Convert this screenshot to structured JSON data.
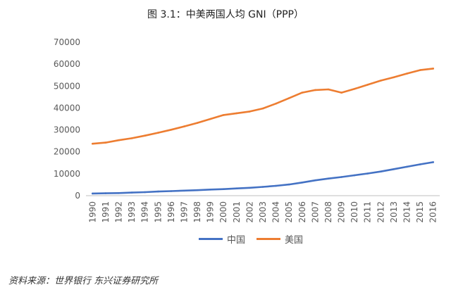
{
  "title": "图 3.1：中美两国人均 GNI（PPP）",
  "source": "资料来源：世界银行 东兴证券研究所",
  "chart_data": {
    "type": "line",
    "title": "图 3.1：中美两国人均 GNI（PPP）",
    "xlabel": "",
    "ylabel": "",
    "ylim": [
      0,
      70000
    ],
    "yticks": [
      0,
      10000,
      20000,
      30000,
      40000,
      50000,
      60000,
      70000
    ],
    "grid": false,
    "legend": "bottom",
    "x": [
      "1990",
      "1991",
      "1992",
      "1993",
      "1994",
      "1995",
      "1996",
      "1997",
      "1998",
      "1999",
      "2000",
      "2001",
      "2002",
      "2003",
      "2004",
      "2005",
      "2006",
      "2007",
      "2008",
      "2009",
      "2010",
      "2011",
      "2012",
      "2013",
      "2014",
      "2015",
      "2016"
    ],
    "series": [
      {
        "name": "中国",
        "color": "#4472C4",
        "values": [
          1000,
          1100,
          1200,
          1400,
          1600,
          1900,
          2100,
          2300,
          2500,
          2800,
          3000,
          3300,
          3600,
          4000,
          4500,
          5100,
          6000,
          7000,
          7800,
          8500,
          9300,
          10100,
          11000,
          12100,
          13200,
          14300,
          15300
        ]
      },
      {
        "name": "美国",
        "color": "#ED7D31",
        "values": [
          23700,
          24200,
          25300,
          26200,
          27400,
          28700,
          30100,
          31600,
          33200,
          35000,
          36800,
          37600,
          38400,
          39800,
          42000,
          44500,
          47000,
          48200,
          48500,
          47000,
          48700,
          50600,
          52500,
          54000,
          55700,
          57300,
          58000
        ]
      }
    ]
  }
}
